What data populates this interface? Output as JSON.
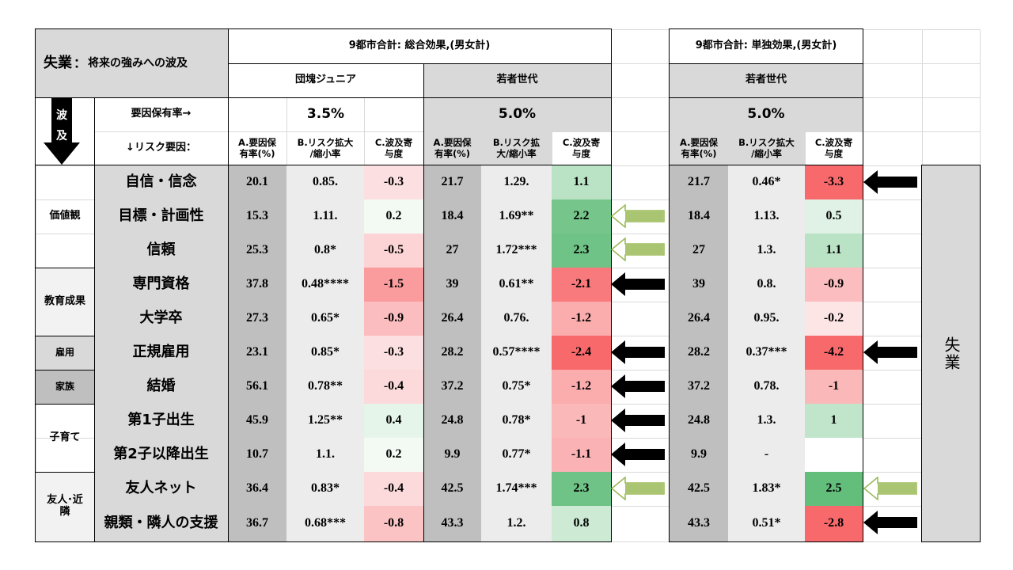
{
  "title": {
    "main": "失業",
    "sep": "：",
    "rest": "将来の強みへの波及"
  },
  "header": {
    "total_effect": "9都市合計: 総合効果,(男女計)",
    "solo_effect": "9都市合計: 単独効果,(男女計)",
    "group_junior": "団塊ジュニア",
    "group_young": "若者世代",
    "group_young2": "若者世代"
  },
  "side": {
    "wave1": "波",
    "wave2": "及"
  },
  "labels": {
    "holding_rate": "要因保有率→",
    "risk_factor": "↓リスク要因："
  },
  "rates": {
    "junior": "3.5%",
    "young": "5.0%",
    "young2": "5.0%"
  },
  "col_headers": {
    "a": "A.要因保有率(%)",
    "b": "B.リスク拡大/縮小率",
    "c": "C.波及寄与度",
    "a1": "A.要因保",
    "a2": "有率(%)",
    "b1": "B.リスク拡大",
    "b2": "/縮小率",
    "b1y": "B.リスク拡",
    "b2y": "大/縮小率",
    "c1": "C.波及寄",
    "c2": "与度"
  },
  "categories": [
    "価値観",
    "教育成果",
    "雇用",
    "家族",
    "子育て",
    "友人･近隣"
  ],
  "right_label": "失業",
  "rows": [
    {
      "factor": "自信・信念",
      "ja": "20.1",
      "jb": "0.85.",
      "jc": "-0.3",
      "ya": "21.7",
      "yb": "1.29.",
      "yc": "1.1",
      "sa": "21.7",
      "sb": "0.46*",
      "sc": "-3.3"
    },
    {
      "factor": "目標・計画性",
      "ja": "15.3",
      "jb": "1.11.",
      "jc": "0.2",
      "ya": "18.4",
      "yb": "1.69**",
      "yc": "2.2",
      "sa": "18.4",
      "sb": "1.13.",
      "sc": "0.5"
    },
    {
      "factor": "信頼",
      "ja": "25.3",
      "jb": "0.8*",
      "jc": "-0.5",
      "ya": "27",
      "yb": "1.72***",
      "yc": "2.3",
      "sa": "27",
      "sb": "1.3.",
      "sc": "1.1"
    },
    {
      "factor": "専門資格",
      "ja": "37.8",
      "jb": "0.48****",
      "jc": "-1.5",
      "ya": "39",
      "yb": "0.61**",
      "yc": "-2.1",
      "sa": "39",
      "sb": "0.8.",
      "sc": "-0.9"
    },
    {
      "factor": "大学卒",
      "ja": "27.3",
      "jb": "0.65*",
      "jc": "-0.9",
      "ya": "26.4",
      "yb": "0.76.",
      "yc": "-1.2",
      "sa": "26.4",
      "sb": "0.95.",
      "sc": "-0.2"
    },
    {
      "factor": "正規雇用",
      "ja": "23.1",
      "jb": "0.85*",
      "jc": "-0.3",
      "ya": "28.2",
      "yb": "0.57****",
      "yc": "-2.4",
      "sa": "28.2",
      "sb": "0.37***",
      "sc": "-4.2"
    },
    {
      "factor": "結婚",
      "ja": "56.1",
      "jb": "0.78**",
      "jc": "-0.4",
      "ya": "37.2",
      "yb": "0.75*",
      "yc": "-1.2",
      "sa": "37.2",
      "sb": "0.78.",
      "sc": "-1"
    },
    {
      "factor": "第1子出生",
      "ja": "45.9",
      "jb": "1.25**",
      "jc": "0.4",
      "ya": "24.8",
      "yb": "0.78*",
      "yc": "-1",
      "sa": "24.8",
      "sb": "1.3.",
      "sc": "1"
    },
    {
      "factor": "第2子以降出生",
      "ja": "10.7",
      "jb": "1.1.",
      "jc": "0.2",
      "ya": "9.9",
      "yb": "0.77*",
      "yc": "-1.1",
      "sa": "9.9",
      "sb": "-",
      "sc": ""
    },
    {
      "factor": "友人ネット",
      "ja": "36.4",
      "jb": "0.83*",
      "jc": "-0.4",
      "ya": "42.5",
      "yb": "1.74***",
      "yc": "2.3",
      "sa": "42.5",
      "sb": "1.83*",
      "sc": "2.5"
    },
    {
      "factor": "親類・隣人の支援",
      "ja": "36.7",
      "jb": "0.68***",
      "jc": "-0.8",
      "ya": "43.3",
      "yb": "1.2.",
      "yc": "0.8",
      "sa": "43.3",
      "sb": "0.51*",
      "sc": "-2.8"
    }
  ],
  "colors": {
    "header_grey": "#d9d9d9",
    "col_a_grey": "#bfbfbf",
    "col_b_grey": "#ededed",
    "strong_green": "#63be7b",
    "light_green": "#c6e9cf",
    "strong_red": "#f8696b",
    "light_red": "#fbc7c9",
    "arrow_green_fill": "#ffffff",
    "arrow_green_stroke": "#9bbb59"
  }
}
